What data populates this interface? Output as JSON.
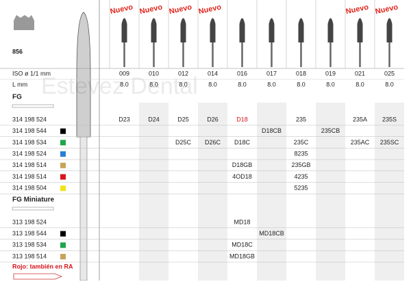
{
  "header": {
    "product": "856",
    "iso_label": "ISO ø 1/1 mm",
    "length_label": "L mm",
    "watermark": "Estevez Dental"
  },
  "columns": [
    {
      "iso": "009",
      "length": "8.0",
      "badge": "Nuevo"
    },
    {
      "iso": "010",
      "length": "8.0",
      "badge": "Nuevo"
    },
    {
      "iso": "012",
      "length": "8.0",
      "badge": "Nuevo"
    },
    {
      "iso": "014",
      "length": "8.0",
      "badge": "Nuevo"
    },
    {
      "iso": "016",
      "length": "8.0",
      "badge": null
    },
    {
      "iso": "017",
      "length": "8.0",
      "badge": null
    },
    {
      "iso": "018",
      "length": "8.0",
      "badge": null
    },
    {
      "iso": "019",
      "length": "8.0",
      "badge": null
    },
    {
      "iso": "021",
      "length": "8.0",
      "badge": "Nuevo"
    },
    {
      "iso": "025",
      "length": "8.0",
      "badge": "Nuevo"
    }
  ],
  "sections": [
    {
      "title": "FG",
      "rows": [
        {
          "code": "314 198 524",
          "swatch": null,
          "cells": [
            "D23",
            "D24",
            "D25",
            "D26",
            {
              "text": "D18",
              "color": "#d8141c"
            },
            null,
            "235",
            null,
            "235A",
            "235S"
          ]
        },
        {
          "code": "314 198 544",
          "swatch": "#000000",
          "cells": [
            null,
            null,
            null,
            null,
            null,
            "D18CB",
            null,
            "235CB",
            null,
            null
          ]
        },
        {
          "code": "314 198 534",
          "swatch": "#1fa54a",
          "cells": [
            null,
            null,
            "D25C",
            "D26C",
            "D18C",
            null,
            "235C",
            null,
            "235AC",
            "235SC"
          ]
        },
        {
          "code": "314 198 524",
          "swatch": "#2a7fd4",
          "cells": [
            null,
            null,
            null,
            null,
            null,
            null,
            "8235",
            null,
            null,
            null
          ]
        },
        {
          "code": "314 198 514",
          "swatch": "#c8a25a",
          "cells": [
            null,
            null,
            null,
            null,
            "D18GB",
            null,
            "235GB",
            null,
            null,
            null
          ]
        },
        {
          "code": "314 198 514",
          "swatch": "#d8141c",
          "cells": [
            null,
            null,
            null,
            null,
            "4OD18",
            null,
            "4235",
            null,
            null,
            null
          ]
        },
        {
          "code": "314 198 504",
          "swatch": "#f2e21a",
          "cells": [
            null,
            null,
            null,
            null,
            null,
            null,
            "5235",
            null,
            null,
            null
          ]
        }
      ]
    },
    {
      "title": "FG Miniature",
      "rows": [
        {
          "code": "313 198 524",
          "swatch": null,
          "cells": [
            null,
            null,
            null,
            null,
            "MD18",
            null,
            null,
            null,
            null,
            null
          ]
        },
        {
          "code": "313 198 544",
          "swatch": "#000000",
          "cells": [
            null,
            null,
            null,
            null,
            null,
            "MD18CB",
            null,
            null,
            null,
            null
          ]
        },
        {
          "code": "313 198 534",
          "swatch": "#1fa54a",
          "cells": [
            null,
            null,
            null,
            null,
            "MD18C",
            null,
            null,
            null,
            null,
            null
          ]
        },
        {
          "code": "313 198 514",
          "swatch": "#c8a25a",
          "cells": [
            null,
            null,
            null,
            null,
            "MD18GB",
            null,
            null,
            null,
            null,
            null
          ]
        }
      ]
    }
  ],
  "footer": "Rojo: también en RA"
}
